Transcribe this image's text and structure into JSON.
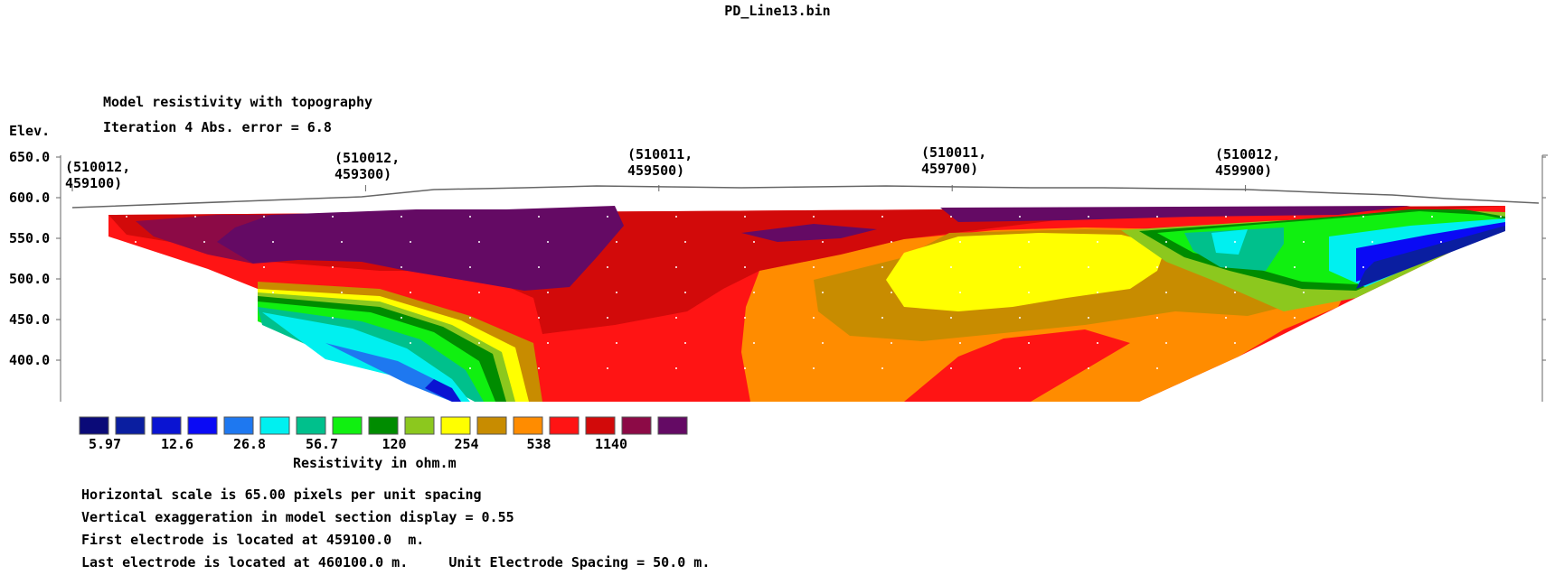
{
  "window": {
    "file_title": "PD_Line13.bin"
  },
  "header": {
    "model_title": "Model resistivity with topography",
    "iteration_line": "Iteration 4 Abs. error = 6.8",
    "elev_label": "Elev."
  },
  "chart_data": {
    "type": "heatmap",
    "title": "Model resistivity with topography",
    "ylabel": "Elev.",
    "ylim": [
      350,
      650
    ],
    "y_ticks": [
      {
        "value": 650,
        "label": "650.0"
      },
      {
        "value": 600,
        "label": "600.0"
      },
      {
        "value": 550,
        "label": "550.0"
      },
      {
        "value": 500,
        "label": "500.0"
      },
      {
        "value": 450,
        "label": "450.0"
      },
      {
        "value": 400,
        "label": "400.0"
      }
    ],
    "x_range_m": [
      459100,
      460100
    ],
    "position_labels": [
      {
        "line1": "(510012,",
        "line2": "459100)",
        "distance_m": 459100
      },
      {
        "line1": "(510012,",
        "line2": "459300)",
        "distance_m": 459300
      },
      {
        "line1": "(510011,",
        "line2": "459500)",
        "distance_m": 459500
      },
      {
        "line1": "(510011,",
        "line2": "459700)",
        "distance_m": 459700
      },
      {
        "line1": "(510012,",
        "line2": "459900)",
        "distance_m": 459900
      }
    ],
    "topography": [
      {
        "x": 459100,
        "elev": 594
      },
      {
        "x": 459300,
        "elev": 600
      },
      {
        "x": 459400,
        "elev": 614
      },
      {
        "x": 459500,
        "elev": 615
      },
      {
        "x": 459700,
        "elev": 619
      },
      {
        "x": 459900,
        "elev": 613
      },
      {
        "x": 460000,
        "elev": 608
      },
      {
        "x": 460100,
        "elev": 597
      }
    ],
    "legend": {
      "title": "Resistivity in ohm.m",
      "colors": [
        "#0a0a78",
        "#0a1ea0",
        "#0a14d2",
        "#0a0af5",
        "#1e78f0",
        "#00f0f0",
        "#00c08c",
        "#10f010",
        "#008c00",
        "#8cc81e",
        "#ffff00",
        "#c88c00",
        "#ff8c00",
        "#ff1414",
        "#d20a0a",
        "#8c0a46",
        "#640a64"
      ],
      "labels": [
        {
          "value": "5.97",
          "index": 1
        },
        {
          "value": "12.6",
          "index": 3
        },
        {
          "value": "26.8",
          "index": 5
        },
        {
          "value": "56.7",
          "index": 7
        },
        {
          "value": "120",
          "index": 9
        },
        {
          "value": "254",
          "index": 11
        },
        {
          "value": "538",
          "index": 13
        },
        {
          "value": "1140",
          "index": 15
        }
      ]
    },
    "grid": false
  },
  "info": {
    "horizontal_scale": "Horizontal scale is 65.00 pixels per unit spacing",
    "vertical_exaggeration": "Vertical exaggeration in model section display = 0.55",
    "first_electrode": "First electrode is located at 459100.0  m.",
    "last_electrode": "Last electrode is located at 460100.0 m.     Unit Electrode Spacing = 50.0 m."
  }
}
